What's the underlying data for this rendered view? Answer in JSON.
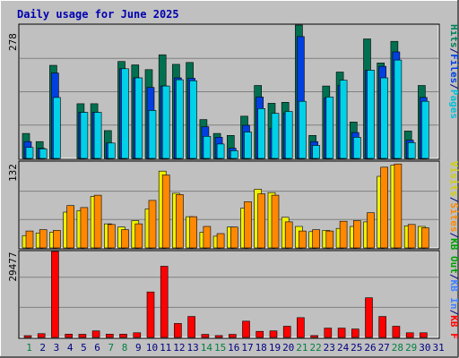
{
  "title": "Daily usage for June 2025",
  "colors": {
    "background": "#c0c0c0",
    "plot": "#c0c0c0",
    "title": "#0000b0",
    "hits": "#007050",
    "files": "#0040e0",
    "pages": "#00d0e8",
    "visits": "#f0f000",
    "sites": "#ff8800",
    "kbin": "#4060c0",
    "kbout": "#00a000",
    "kbf": "#ff0000",
    "weekday_label": "#000080",
    "weekend_label": "#008040"
  },
  "panels": {
    "top": {
      "y_max_label": "278",
      "legend": [
        {
          "text": "Hits",
          "color": "#00805a"
        },
        {
          "text": "/",
          "color": "#000080"
        },
        {
          "text": "Files",
          "color": "#0040e0"
        },
        {
          "text": "/",
          "color": "#000080"
        },
        {
          "text": "Pages",
          "color": "#00c0d8"
        }
      ]
    },
    "middle": {
      "y_max_label": "132",
      "legend": [
        {
          "text": "Visits",
          "color": "#d0d000"
        },
        {
          "text": "/",
          "color": "#000080"
        },
        {
          "text": "Sites",
          "color": "#ff8800"
        },
        {
          "text": "/",
          "color": "#000080"
        },
        {
          "text": "KB Out",
          "color": "#00a000"
        },
        {
          "text": "/",
          "color": "#000080"
        },
        {
          "text": "KB In",
          "color": "#4080ff"
        },
        {
          "text": "/",
          "color": "#000080"
        },
        {
          "text": "KB F",
          "color": "#ff0000"
        }
      ]
    },
    "bottom": {
      "y_max_label": "29477"
    }
  },
  "chart_data": {
    "type": "bar",
    "title": "Daily usage for June 2025",
    "categories": [
      "1",
      "2",
      "3",
      "4",
      "5",
      "6",
      "7",
      "8",
      "9",
      "10",
      "11",
      "12",
      "13",
      "14",
      "15",
      "16",
      "17",
      "18",
      "19",
      "20",
      "21",
      "22",
      "23",
      "24",
      "25",
      "26",
      "27",
      "28",
      "29",
      "30",
      "31"
    ],
    "weekend_days": [
      1,
      7,
      8,
      14,
      15,
      21,
      22,
      28,
      29
    ],
    "top": {
      "ylim": [
        0,
        278
      ],
      "series": [
        {
          "name": "Hits",
          "values": [
            52,
            35,
            194,
            0,
            114,
            114,
            58,
            202,
            195,
            185,
            216,
            196,
            200,
            81,
            52,
            48,
            88,
            152,
            115,
            117,
            278,
            48,
            151,
            180,
            76,
            249,
            199,
            244,
            57,
            152,
            0
          ]
        },
        {
          "name": "Files",
          "values": [
            35,
            21,
            178,
            0,
            96,
            96,
            32,
            187,
            168,
            148,
            151,
            168,
            167,
            66,
            44,
            21,
            69,
            128,
            63,
            95,
            254,
            35,
            126,
            152,
            54,
            184,
            192,
            222,
            38,
            127,
            0
          ]
        },
        {
          "name": "Pages",
          "values": [
            23,
            20,
            127,
            0,
            96,
            96,
            32,
            187,
            168,
            100,
            151,
            164,
            162,
            46,
            30,
            16,
            55,
            104,
            94,
            98,
            119,
            27,
            128,
            163,
            44,
            184,
            168,
            205,
            33,
            119,
            0
          ]
        }
      ]
    },
    "middle": {
      "ylim": [
        0,
        132
      ],
      "series": [
        {
          "name": "Visits",
          "values": [
            19,
            23,
            24,
            55,
            57,
            79,
            37,
            32,
            42,
            60,
            118,
            84,
            48,
            24,
            18,
            32,
            61,
            90,
            85,
            47,
            33,
            25,
            27,
            30,
            33,
            40,
            110,
            127,
            34,
            33,
            0
          ]
        },
        {
          "name": "Sites",
          "values": [
            26,
            28,
            27,
            65,
            62,
            81,
            36,
            28,
            37,
            73,
            112,
            82,
            48,
            33,
            22,
            32,
            71,
            83,
            81,
            40,
            26,
            28,
            26,
            41,
            42,
            54,
            124,
            129,
            36,
            31,
            0
          ]
        }
      ]
    },
    "bottom": {
      "ylim": [
        0,
        29477
      ],
      "series": [
        {
          "name": "KB F",
          "values": [
            620,
            1280,
            29477,
            1120,
            1080,
            2240,
            1120,
            1120,
            1600,
            15600,
            24400,
            4800,
            7200,
            1040,
            640,
            1040,
            5600,
            2080,
            2240,
            3840,
            6800,
            640,
            3200,
            3200,
            2880,
            13600,
            7200,
            3840,
            1600,
            1600,
            0
          ]
        }
      ]
    }
  }
}
